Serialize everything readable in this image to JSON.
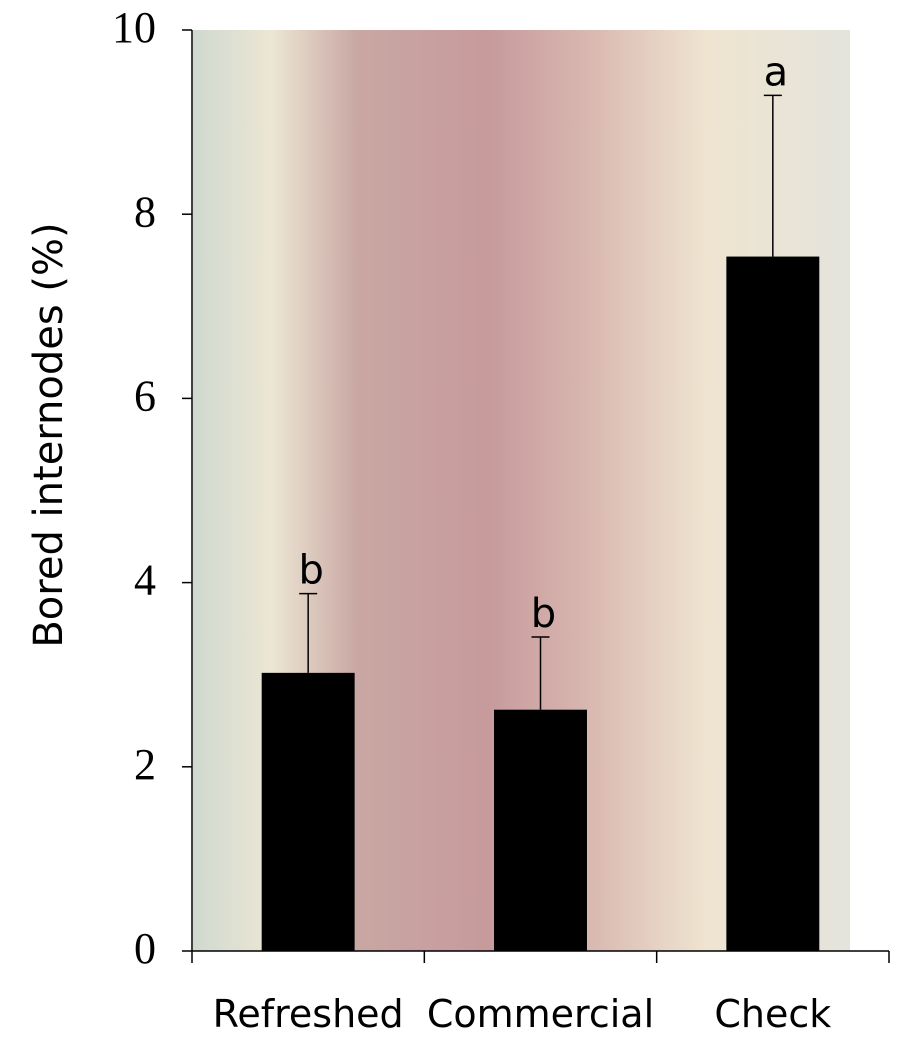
{
  "chart_data": {
    "type": "bar",
    "y_label": "Bored internodes (%)",
    "categories": [
      "Refreshed",
      "Commercial",
      "Check"
    ],
    "values": [
      3.02,
      2.62,
      7.54
    ],
    "errors": [
      0.86,
      0.79,
      1.75
    ],
    "annotations": [
      "b",
      "b",
      "a"
    ],
    "color": "#000000",
    "ylim": [
      0,
      10
    ],
    "yticks": [
      0,
      2,
      4,
      6,
      8,
      10
    ],
    "grid": false
  }
}
